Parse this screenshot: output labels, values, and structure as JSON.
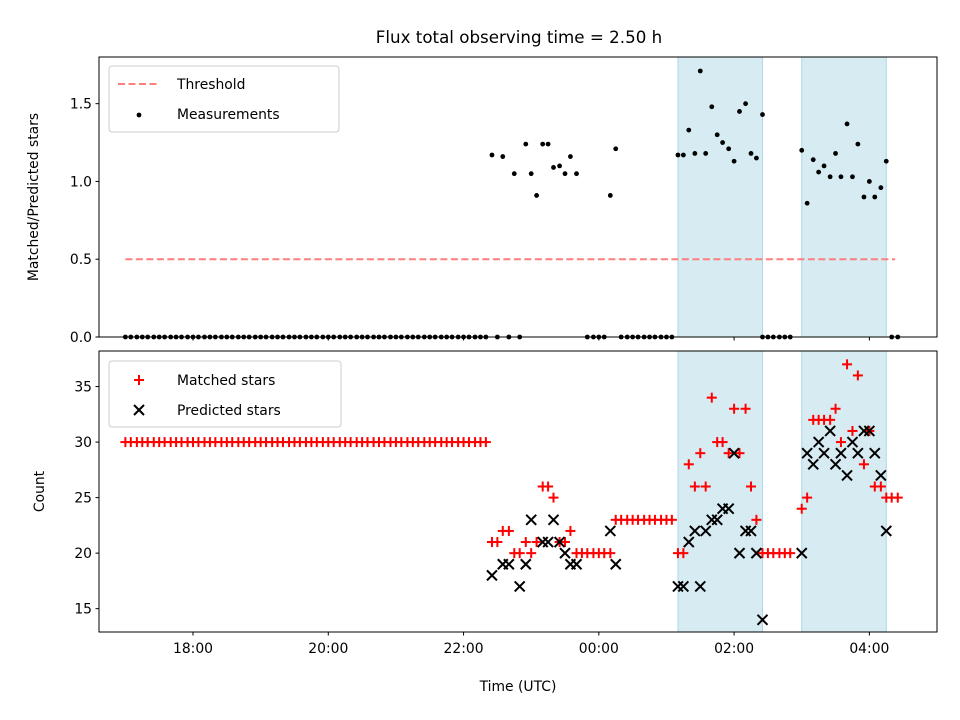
{
  "title": "Flux total observing time = 2.50 h",
  "colors": {
    "threshold": "#ff7f7f",
    "measurement": "#000000",
    "matched": "#ff0000",
    "predicted": "#000000",
    "shade": "#add8e6"
  },
  "chart_data": [
    {
      "type": "scatter",
      "ylabel": "Matched/Predicted stars",
      "xlim": [
        16.61,
        29.0
      ],
      "ylim": [
        0.0,
        1.8
      ],
      "yticks": [
        0.0,
        0.5,
        1.0,
        1.5
      ],
      "yticklabels": [
        "0.0",
        "0.5",
        "1.0",
        "1.5"
      ],
      "shaded_intervals": [
        [
          25.17,
          26.42
        ],
        [
          27.0,
          28.25
        ]
      ],
      "legend": {
        "placement": "upper-left",
        "entries": [
          "Threshold",
          "Measurements"
        ]
      },
      "threshold": {
        "name": "Threshold",
        "y": 0.5,
        "x": [
          17.0,
          28.38
        ]
      },
      "measurements": {
        "name": "Measurements",
        "zeros_x": [
          17.0,
          17.08,
          17.17,
          17.25,
          17.33,
          17.42,
          17.5,
          17.58,
          17.67,
          17.75,
          17.83,
          17.92,
          18.0,
          18.08,
          18.17,
          18.25,
          18.33,
          18.42,
          18.5,
          18.58,
          18.67,
          18.75,
          18.83,
          18.92,
          19.0,
          19.08,
          19.17,
          19.25,
          19.33,
          19.42,
          19.5,
          19.58,
          19.67,
          19.75,
          19.83,
          19.92,
          20.0,
          20.08,
          20.17,
          20.25,
          20.33,
          20.42,
          20.5,
          20.58,
          20.67,
          20.75,
          20.83,
          20.92,
          21.0,
          21.08,
          21.17,
          21.25,
          21.33,
          21.42,
          21.5,
          21.58,
          21.67,
          21.75,
          21.83,
          21.92,
          22.0,
          22.08,
          22.17,
          22.25,
          22.33,
          22.5,
          22.67,
          22.83,
          23.83,
          23.92,
          24.0,
          24.08,
          24.33,
          24.42,
          24.5,
          24.58,
          24.67,
          24.75,
          24.83,
          24.92,
          25.0,
          25.08,
          26.42,
          26.5,
          26.58,
          26.67,
          26.75,
          26.83,
          28.33,
          28.42
        ],
        "points": [
          [
            22.42,
            1.17
          ],
          [
            22.58,
            1.16
          ],
          [
            22.75,
            1.05
          ],
          [
            22.92,
            1.24
          ],
          [
            23.0,
            1.05
          ],
          [
            23.08,
            0.91
          ],
          [
            23.17,
            1.24
          ],
          [
            23.25,
            1.24
          ],
          [
            23.33,
            1.09
          ],
          [
            23.42,
            1.1
          ],
          [
            23.5,
            1.05
          ],
          [
            23.58,
            1.16
          ],
          [
            23.67,
            1.05
          ],
          [
            24.17,
            0.91
          ],
          [
            24.25,
            1.21
          ],
          [
            25.17,
            1.17
          ],
          [
            25.25,
            1.17
          ],
          [
            25.33,
            1.33
          ],
          [
            25.42,
            1.18
          ],
          [
            25.5,
            1.71
          ],
          [
            25.58,
            1.18
          ],
          [
            25.67,
            1.48
          ],
          [
            25.75,
            1.3
          ],
          [
            25.83,
            1.25
          ],
          [
            25.92,
            1.21
          ],
          [
            26.0,
            1.13
          ],
          [
            26.08,
            1.45
          ],
          [
            26.17,
            1.5
          ],
          [
            26.25,
            1.18
          ],
          [
            26.33,
            1.15
          ],
          [
            26.42,
            1.43
          ],
          [
            27.0,
            1.2
          ],
          [
            27.08,
            0.86
          ],
          [
            27.17,
            1.14
          ],
          [
            27.25,
            1.06
          ],
          [
            27.33,
            1.1
          ],
          [
            27.42,
            1.03
          ],
          [
            27.5,
            1.18
          ],
          [
            27.58,
            1.03
          ],
          [
            27.67,
            1.37
          ],
          [
            27.75,
            1.03
          ],
          [
            27.83,
            1.24
          ],
          [
            27.92,
            0.9
          ],
          [
            28.0,
            1.0
          ],
          [
            28.08,
            0.9
          ],
          [
            28.17,
            0.96
          ],
          [
            28.25,
            1.13
          ]
        ]
      }
    },
    {
      "type": "scatter",
      "xlabel": "Time (UTC)",
      "ylabel": "Count",
      "xlim": [
        16.61,
        29.0
      ],
      "ylim": [
        12.9,
        38.2
      ],
      "xticks": [
        18,
        20,
        22,
        24,
        26,
        28
      ],
      "xticklabels": [
        "18:00",
        "20:00",
        "22:00",
        "00:00",
        "02:00",
        "04:00"
      ],
      "yticks": [
        15,
        20,
        25,
        30,
        35
      ],
      "yticklabels": [
        "15",
        "20",
        "25",
        "30",
        "35"
      ],
      "shaded_intervals": [
        [
          25.17,
          26.42
        ],
        [
          27.0,
          28.25
        ]
      ],
      "legend": {
        "placement": "upper-left",
        "entries": [
          "Matched stars",
          "Predicted stars"
        ]
      },
      "series": [
        {
          "name": "Matched stars",
          "marker": "plus",
          "points": [
            [
              17.0,
              30
            ],
            [
              17.08,
              30
            ],
            [
              17.17,
              30
            ],
            [
              17.25,
              30
            ],
            [
              17.33,
              30
            ],
            [
              17.42,
              30
            ],
            [
              17.5,
              30
            ],
            [
              17.58,
              30
            ],
            [
              17.67,
              30
            ],
            [
              17.75,
              30
            ],
            [
              17.83,
              30
            ],
            [
              17.92,
              30
            ],
            [
              18.0,
              30
            ],
            [
              18.08,
              30
            ],
            [
              18.17,
              30
            ],
            [
              18.25,
              30
            ],
            [
              18.33,
              30
            ],
            [
              18.42,
              30
            ],
            [
              18.5,
              30
            ],
            [
              18.58,
              30
            ],
            [
              18.67,
              30
            ],
            [
              18.75,
              30
            ],
            [
              18.83,
              30
            ],
            [
              18.92,
              30
            ],
            [
              19.0,
              30
            ],
            [
              19.08,
              30
            ],
            [
              19.17,
              30
            ],
            [
              19.25,
              30
            ],
            [
              19.33,
              30
            ],
            [
              19.42,
              30
            ],
            [
              19.5,
              30
            ],
            [
              19.58,
              30
            ],
            [
              19.67,
              30
            ],
            [
              19.75,
              30
            ],
            [
              19.83,
              30
            ],
            [
              19.92,
              30
            ],
            [
              20.0,
              30
            ],
            [
              20.08,
              30
            ],
            [
              20.17,
              30
            ],
            [
              20.25,
              30
            ],
            [
              20.33,
              30
            ],
            [
              20.42,
              30
            ],
            [
              20.5,
              30
            ],
            [
              20.58,
              30
            ],
            [
              20.67,
              30
            ],
            [
              20.75,
              30
            ],
            [
              20.83,
              30
            ],
            [
              20.92,
              30
            ],
            [
              21.0,
              30
            ],
            [
              21.08,
              30
            ],
            [
              21.17,
              30
            ],
            [
              21.25,
              30
            ],
            [
              21.33,
              30
            ],
            [
              21.42,
              30
            ],
            [
              21.5,
              30
            ],
            [
              21.58,
              30
            ],
            [
              21.67,
              30
            ],
            [
              21.75,
              30
            ],
            [
              21.83,
              30
            ],
            [
              21.92,
              30
            ],
            [
              22.0,
              30
            ],
            [
              22.08,
              30
            ],
            [
              22.17,
              30
            ],
            [
              22.25,
              30
            ],
            [
              22.33,
              30
            ],
            [
              22.42,
              21
            ],
            [
              22.5,
              21
            ],
            [
              22.58,
              22
            ],
            [
              22.67,
              22
            ],
            [
              22.75,
              20
            ],
            [
              22.83,
              20
            ],
            [
              22.92,
              21
            ],
            [
              23.0,
              20
            ],
            [
              23.08,
              21
            ],
            [
              23.17,
              26
            ],
            [
              23.25,
              26
            ],
            [
              23.33,
              25
            ],
            [
              23.42,
              21
            ],
            [
              23.5,
              21
            ],
            [
              23.58,
              22
            ],
            [
              23.67,
              20
            ],
            [
              23.75,
              20
            ],
            [
              23.83,
              20
            ],
            [
              23.92,
              20
            ],
            [
              24.0,
              20
            ],
            [
              24.08,
              20
            ],
            [
              24.17,
              20
            ],
            [
              24.25,
              23
            ],
            [
              24.33,
              23
            ],
            [
              24.42,
              23
            ],
            [
              24.5,
              23
            ],
            [
              24.58,
              23
            ],
            [
              24.67,
              23
            ],
            [
              24.75,
              23
            ],
            [
              24.83,
              23
            ],
            [
              24.92,
              23
            ],
            [
              25.0,
              23
            ],
            [
              25.08,
              23
            ],
            [
              25.17,
              20
            ],
            [
              25.25,
              20
            ],
            [
              25.33,
              28
            ],
            [
              25.42,
              26
            ],
            [
              25.5,
              29
            ],
            [
              25.58,
              26
            ],
            [
              25.67,
              34
            ],
            [
              25.75,
              30
            ],
            [
              25.83,
              30
            ],
            [
              25.92,
              29
            ],
            [
              26.0,
              33
            ],
            [
              26.08,
              29
            ],
            [
              26.17,
              33
            ],
            [
              26.25,
              26
            ],
            [
              26.33,
              23
            ],
            [
              26.42,
              20
            ],
            [
              26.5,
              20
            ],
            [
              26.58,
              20
            ],
            [
              26.67,
              20
            ],
            [
              26.75,
              20
            ],
            [
              26.83,
              20
            ],
            [
              27.0,
              24
            ],
            [
              27.08,
              25
            ],
            [
              27.17,
              32
            ],
            [
              27.25,
              32
            ],
            [
              27.33,
              32
            ],
            [
              27.42,
              32
            ],
            [
              27.5,
              33
            ],
            [
              27.58,
              30
            ],
            [
              27.67,
              37
            ],
            [
              27.75,
              31
            ],
            [
              27.83,
              36
            ],
            [
              27.92,
              28
            ],
            [
              28.0,
              31
            ],
            [
              28.08,
              26
            ],
            [
              28.17,
              26
            ],
            [
              28.25,
              25
            ],
            [
              28.33,
              25
            ],
            [
              28.42,
              25
            ]
          ]
        },
        {
          "name": "Predicted stars",
          "marker": "x",
          "points": [
            [
              22.42,
              18
            ],
            [
              22.58,
              19
            ],
            [
              22.67,
              19
            ],
            [
              22.83,
              17
            ],
            [
              22.92,
              19
            ],
            [
              23.0,
              23
            ],
            [
              23.17,
              21
            ],
            [
              23.25,
              21
            ],
            [
              23.33,
              23
            ],
            [
              23.42,
              21
            ],
            [
              23.5,
              20
            ],
            [
              23.58,
              19
            ],
            [
              23.67,
              19
            ],
            [
              24.17,
              22
            ],
            [
              24.25,
              19
            ],
            [
              25.17,
              17
            ],
            [
              25.25,
              17
            ],
            [
              25.33,
              21
            ],
            [
              25.42,
              22
            ],
            [
              25.5,
              17
            ],
            [
              25.58,
              22
            ],
            [
              25.67,
              23
            ],
            [
              25.75,
              23
            ],
            [
              25.83,
              24
            ],
            [
              25.92,
              24
            ],
            [
              26.0,
              29
            ],
            [
              26.08,
              20
            ],
            [
              26.17,
              22
            ],
            [
              26.25,
              22
            ],
            [
              26.33,
              20
            ],
            [
              26.42,
              14
            ],
            [
              27.0,
              20
            ],
            [
              27.08,
              29
            ],
            [
              27.17,
              28
            ],
            [
              27.25,
              30
            ],
            [
              27.33,
              29
            ],
            [
              27.42,
              31
            ],
            [
              27.5,
              28
            ],
            [
              27.58,
              29
            ],
            [
              27.67,
              27
            ],
            [
              27.75,
              30
            ],
            [
              27.83,
              29
            ],
            [
              27.92,
              31
            ],
            [
              28.0,
              31
            ],
            [
              28.08,
              29
            ],
            [
              28.17,
              27
            ],
            [
              28.25,
              22
            ]
          ]
        }
      ]
    }
  ]
}
